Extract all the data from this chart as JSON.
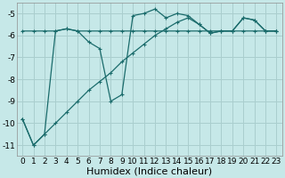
{
  "xlabel": "Humidex (Indice chaleur)",
  "bg_color": "#c6e8e8",
  "grid_color": "#aacece",
  "line_color": "#1a6b6b",
  "x_values": [
    0,
    1,
    2,
    3,
    4,
    5,
    6,
    7,
    8,
    9,
    10,
    11,
    12,
    13,
    14,
    15,
    16,
    17,
    18,
    19,
    20,
    21,
    22,
    23
  ],
  "series1": [
    -9.8,
    -11.0,
    -10.5,
    -5.8,
    -5.7,
    -5.8,
    -6.3,
    -6.6,
    -9.0,
    -8.7,
    -5.1,
    -5.0,
    -4.8,
    -5.2,
    -5.0,
    -5.1,
    -5.5,
    -5.9,
    -5.8,
    -5.8,
    -5.2,
    -5.3,
    -5.8,
    -5.8
  ],
  "series2": [
    -5.8,
    -5.8,
    -5.8,
    -5.8,
    -5.7,
    -5.8,
    -5.8,
    -5.8,
    -5.8,
    -5.8,
    -5.8,
    -5.8,
    -5.8,
    -5.8,
    -5.8,
    -5.8,
    -5.8,
    -5.8,
    -5.8,
    -5.8,
    -5.8,
    -5.8,
    -5.8,
    -5.8
  ],
  "series3": [
    -9.8,
    -11.0,
    -10.5,
    -10.0,
    -9.5,
    -9.0,
    -8.5,
    -8.1,
    -7.7,
    -7.2,
    -6.8,
    -6.4,
    -6.0,
    -5.7,
    -5.4,
    -5.2,
    -5.5,
    -5.9,
    -5.8,
    -5.8,
    -5.2,
    -5.3,
    -5.8,
    -5.8
  ],
  "ylim": [
    -11.5,
    -4.5
  ],
  "yticks": [
    -11,
    -10,
    -9,
    -8,
    -7,
    -6,
    -5
  ],
  "xlim": [
    -0.5,
    23.5
  ],
  "xticks": [
    0,
    1,
    2,
    3,
    4,
    5,
    6,
    7,
    8,
    9,
    10,
    11,
    12,
    13,
    14,
    15,
    16,
    17,
    18,
    19,
    20,
    21,
    22,
    23
  ],
  "xlabel_fontsize": 8,
  "tick_fontsize": 6.5,
  "figsize": [
    3.2,
    2.0
  ],
  "dpi": 100
}
